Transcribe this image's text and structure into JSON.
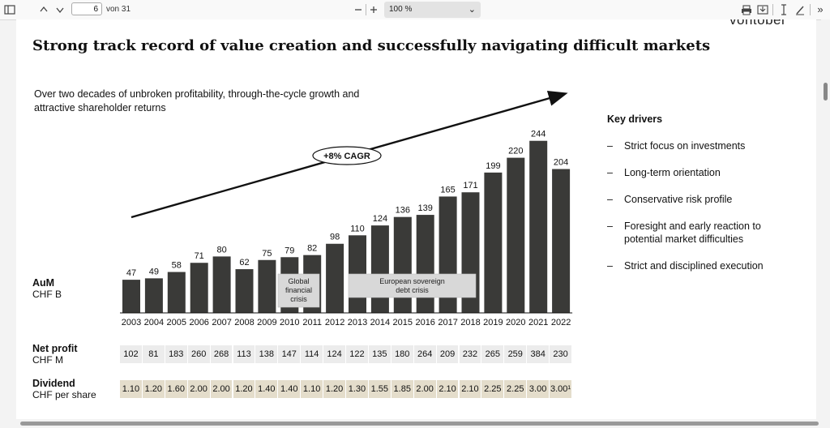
{
  "toolbar": {
    "page_number": "6",
    "page_total": "von 31",
    "zoom": "100 %"
  },
  "brand": "vontobel",
  "slide": {
    "title": "Strong track record of value creation and successfully navigating difficult markets",
    "subtitle": "Over two decades of unbroken profitability, through-the-cycle growth and attractive shareholder returns",
    "cagr": "+8% CAGR",
    "crisis_1": [
      "Global",
      "financial",
      "crisis"
    ],
    "crisis_2": [
      "European sovereign",
      "debt crisis"
    ]
  },
  "rows": {
    "aum_title": "AuM",
    "aum_unit": "CHF B",
    "np_title": "Net profit",
    "np_unit": "CHF M",
    "dv_title": "Dividend",
    "dv_unit": "CHF per share"
  },
  "chart_data": {
    "type": "bar",
    "categories": [
      "2003",
      "2004",
      "2005",
      "2006",
      "2007",
      "2008",
      "2009",
      "2010",
      "2011",
      "2012",
      "2013",
      "2014",
      "2015",
      "2016",
      "2017",
      "2018",
      "2019",
      "2020",
      "2021",
      "2022"
    ],
    "series": [
      {
        "name": "AuM",
        "values": [
          47,
          49,
          58,
          71,
          80,
          62,
          75,
          79,
          82,
          98,
          110,
          124,
          136,
          139,
          165,
          171,
          199,
          220,
          244,
          204
        ]
      }
    ],
    "net_profit": [
      102,
      81,
      183,
      260,
      268,
      113,
      138,
      147,
      114,
      124,
      122,
      135,
      180,
      264,
      209,
      232,
      265,
      259,
      384,
      230
    ],
    "dividend": [
      "1.10",
      "1.20",
      "1.60",
      "2.00",
      "2.00",
      "1.20",
      "1.40",
      "1.40",
      "1.10",
      "1.20",
      "1.30",
      "1.55",
      "1.85",
      "2.00",
      "2.10",
      "2.10",
      "2.25",
      "2.25",
      "3.00",
      "3.00¹"
    ],
    "colors": {
      "bar": "#3a3a38",
      "net_profit_bg": "#ececec",
      "dividend_bg": "#e4ddcb"
    }
  },
  "key_drivers": {
    "title": "Key drivers",
    "dash": "–",
    "items": [
      "Strict focus on investments",
      "Long-term orientation",
      "Conservative risk profile",
      "Foresight and early reaction to potential market difficulties",
      "Strict and disciplined execution"
    ]
  },
  "icons": [
    "sidebar-toggle-icon",
    "chevron-up-icon",
    "chevron-down-icon",
    "minus-icon",
    "plus-icon",
    "print-icon",
    "save-icon",
    "text-cursor-icon",
    "pen-icon",
    "more-icon"
  ]
}
